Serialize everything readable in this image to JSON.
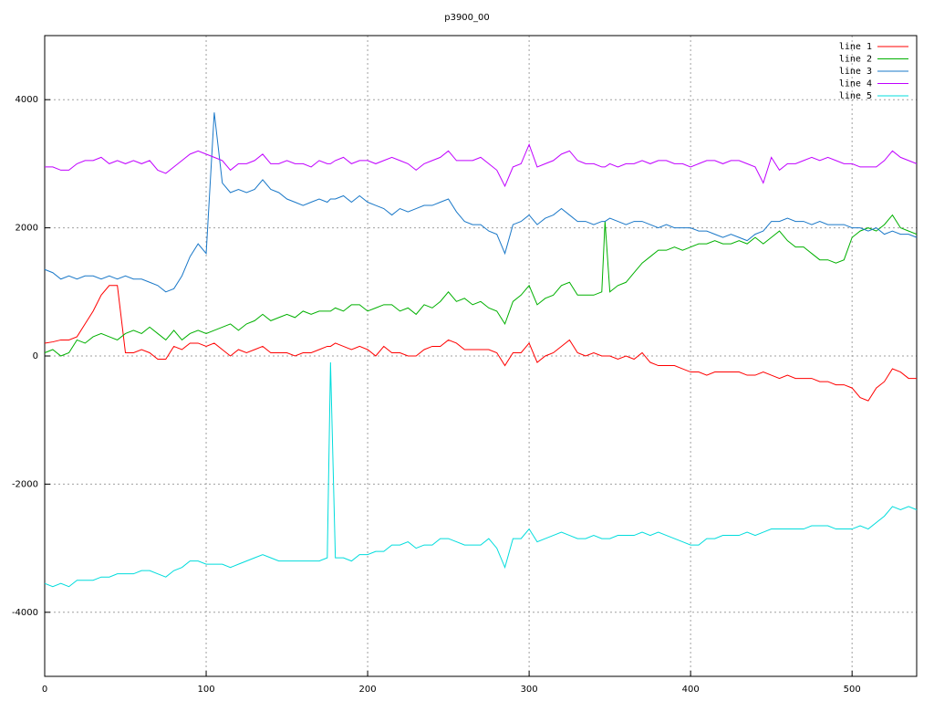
{
  "chart_data": {
    "type": "line",
    "title": "p3900_00",
    "x": [
      0,
      5,
      10,
      15,
      20,
      25,
      30,
      35,
      40,
      45,
      50,
      55,
      60,
      65,
      70,
      75,
      80,
      85,
      90,
      95,
      100,
      105,
      110,
      115,
      120,
      125,
      130,
      135,
      140,
      145,
      150,
      155,
      160,
      165,
      170,
      175,
      177,
      180,
      185,
      190,
      195,
      200,
      205,
      210,
      215,
      220,
      225,
      230,
      235,
      240,
      245,
      250,
      255,
      260,
      265,
      270,
      275,
      280,
      285,
      290,
      295,
      300,
      305,
      310,
      315,
      320,
      325,
      330,
      335,
      340,
      345,
      347,
      350,
      355,
      360,
      365,
      370,
      375,
      380,
      385,
      390,
      395,
      400,
      405,
      410,
      415,
      420,
      425,
      430,
      435,
      440,
      445,
      450,
      455,
      460,
      465,
      470,
      475,
      480,
      485,
      490,
      495,
      500,
      505,
      510,
      515,
      520,
      525,
      530,
      535,
      540
    ],
    "series": [
      {
        "name": "line 1",
        "color": "#ff0000",
        "values": [
          200,
          220,
          250,
          250,
          300,
          500,
          700,
          950,
          1100,
          1100,
          50,
          50,
          100,
          50,
          -50,
          -50,
          150,
          100,
          200,
          200,
          150,
          200,
          100,
          0,
          100,
          50,
          100,
          150,
          50,
          50,
          50,
          0,
          50,
          50,
          100,
          150,
          150,
          200,
          150,
          100,
          150,
          100,
          0,
          150,
          50,
          50,
          0,
          0,
          100,
          150,
          150,
          250,
          200,
          100,
          100,
          100,
          100,
          50,
          -150,
          50,
          50,
          200,
          -100,
          0,
          50,
          150,
          250,
          50,
          0,
          50,
          0,
          0,
          0,
          -50,
          0,
          -50,
          50,
          -100,
          -150,
          -150,
          -150,
          -200,
          -250,
          -250,
          -300,
          -250,
          -250,
          -250,
          -250,
          -300,
          -300,
          -250,
          -300,
          -350,
          -300,
          -350,
          -350,
          -350,
          -400,
          -400,
          -450,
          -450,
          -500,
          -650,
          -700,
          -500,
          -400,
          -200,
          -250,
          -350,
          -350
        ]
      },
      {
        "name": "line 2",
        "color": "#00b000",
        "values": [
          50,
          100,
          0,
          50,
          250,
          200,
          300,
          350,
          300,
          250,
          350,
          400,
          350,
          450,
          350,
          250,
          400,
          250,
          350,
          400,
          350,
          400,
          450,
          500,
          400,
          500,
          550,
          650,
          550,
          600,
          650,
          600,
          700,
          650,
          700,
          700,
          700,
          750,
          700,
          800,
          800,
          700,
          750,
          800,
          800,
          700,
          750,
          650,
          800,
          750,
          850,
          1000,
          850,
          900,
          800,
          850,
          750,
          700,
          500,
          850,
          950,
          1100,
          800,
          900,
          950,
          1100,
          1150,
          950,
          950,
          950,
          1000,
          2100,
          1000,
          1100,
          1150,
          1300,
          1450,
          1550,
          1650,
          1650,
          1700,
          1650,
          1700,
          1750,
          1750,
          1800,
          1750,
          1750,
          1800,
          1750,
          1850,
          1750,
          1850,
          1950,
          1800,
          1700,
          1700,
          1600,
          1500,
          1500,
          1450,
          1500,
          1850,
          1950,
          2000,
          1950,
          2050,
          2200,
          2000,
          1950,
          1900
        ]
      },
      {
        "name": "line 3",
        "color": "#1a78c8",
        "values": [
          1350,
          1300,
          1200,
          1250,
          1200,
          1250,
          1250,
          1200,
          1250,
          1200,
          1250,
          1200,
          1200,
          1150,
          1100,
          1000,
          1050,
          1250,
          1550,
          1750,
          1600,
          3800,
          2700,
          2550,
          2600,
          2550,
          2600,
          2750,
          2600,
          2550,
          2450,
          2400,
          2350,
          2400,
          2450,
          2400,
          2450,
          2450,
          2500,
          2400,
          2500,
          2400,
          2350,
          2300,
          2200,
          2300,
          2250,
          2300,
          2350,
          2350,
          2400,
          2450,
          2250,
          2100,
          2050,
          2050,
          1950,
          1900,
          1600,
          2050,
          2100,
          2200,
          2050,
          2150,
          2200,
          2300,
          2200,
          2100,
          2100,
          2050,
          2100,
          2100,
          2150,
          2100,
          2050,
          2100,
          2100,
          2050,
          2000,
          2050,
          2000,
          2000,
          2000,
          1950,
          1950,
          1900,
          1850,
          1900,
          1850,
          1800,
          1900,
          1950,
          2100,
          2100,
          2150,
          2100,
          2100,
          2050,
          2100,
          2050,
          2050,
          2050,
          2000,
          2000,
          1950,
          2000,
          1900,
          1950,
          1900,
          1900,
          1850
        ]
      },
      {
        "name": "line 4",
        "color": "#c000ff",
        "values": [
          2950,
          2950,
          2900,
          2900,
          3000,
          3050,
          3050,
          3100,
          3000,
          3050,
          3000,
          3050,
          3000,
          3050,
          2900,
          2850,
          2950,
          3050,
          3150,
          3200,
          3150,
          3100,
          3050,
          2900,
          3000,
          3000,
          3050,
          3150,
          3000,
          3000,
          3050,
          3000,
          3000,
          2950,
          3050,
          3000,
          3000,
          3050,
          3100,
          3000,
          3050,
          3050,
          3000,
          3050,
          3100,
          3050,
          3000,
          2900,
          3000,
          3050,
          3100,
          3200,
          3050,
          3050,
          3050,
          3100,
          3000,
          2900,
          2650,
          2950,
          3000,
          3300,
          2950,
          3000,
          3050,
          3150,
          3200,
          3050,
          3000,
          3000,
          2950,
          2950,
          3000,
          2950,
          3000,
          3000,
          3050,
          3000,
          3050,
          3050,
          3000,
          3000,
          2950,
          3000,
          3050,
          3050,
          3000,
          3050,
          3050,
          3000,
          2950,
          2700,
          3100,
          2900,
          3000,
          3000,
          3050,
          3100,
          3050,
          3100,
          3050,
          3000,
          3000,
          2950,
          2950,
          2950,
          3050,
          3200,
          3100,
          3050,
          3000
        ]
      },
      {
        "name": "line 5",
        "color": "#00dcdc",
        "values": [
          -3550,
          -3600,
          -3550,
          -3600,
          -3500,
          -3500,
          -3500,
          -3450,
          -3450,
          -3400,
          -3400,
          -3400,
          -3350,
          -3350,
          -3400,
          -3450,
          -3350,
          -3300,
          -3200,
          -3200,
          -3250,
          -3250,
          -3250,
          -3300,
          -3250,
          -3200,
          -3150,
          -3100,
          -3150,
          -3200,
          -3200,
          -3200,
          -3200,
          -3200,
          -3200,
          -3150,
          -100,
          -3150,
          -3150,
          -3200,
          -3100,
          -3100,
          -3050,
          -3050,
          -2950,
          -2950,
          -2900,
          -3000,
          -2950,
          -2950,
          -2850,
          -2850,
          -2900,
          -2950,
          -2950,
          -2950,
          -2850,
          -3000,
          -3300,
          -2850,
          -2850,
          -2700,
          -2900,
          -2850,
          -2800,
          -2750,
          -2800,
          -2850,
          -2850,
          -2800,
          -2850,
          -2850,
          -2850,
          -2800,
          -2800,
          -2800,
          -2750,
          -2800,
          -2750,
          -2800,
          -2850,
          -2900,
          -2950,
          -2950,
          -2850,
          -2850,
          -2800,
          -2800,
          -2800,
          -2750,
          -2800,
          -2750,
          -2700,
          -2700,
          -2700,
          -2700,
          -2700,
          -2650,
          -2650,
          -2650,
          -2700,
          -2700,
          -2700,
          -2650,
          -2700,
          -2600,
          -2500,
          -2350,
          -2400,
          -2350,
          -2400
        ]
      }
    ],
    "xlim": [
      0,
      540
    ],
    "ylim": [
      -5000,
      5000
    ],
    "xticks": [
      0,
      100,
      200,
      300,
      400,
      500
    ],
    "yticks": [
      -4000,
      -2000,
      0,
      2000,
      4000
    ],
    "grid": true,
    "legend": "top right"
  }
}
